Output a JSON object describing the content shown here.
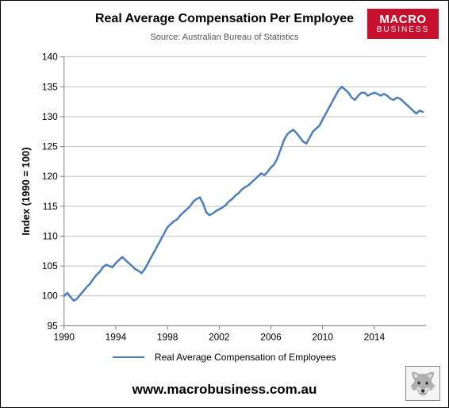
{
  "title": {
    "text": "Real Average Compensation Per Employee",
    "fontsize": 16,
    "weight": "bold",
    "color": "#000000"
  },
  "source": {
    "text": "Source: Australian Bureau of Statistics",
    "fontsize": 11,
    "color": "#555555"
  },
  "brand": {
    "line1": "MACRO",
    "line2": "BUSINESS",
    "bg": "#c8102e",
    "fg": "#ffffff",
    "fontsize1": 15
  },
  "legend": {
    "label": "Real Average Compensation of Employees",
    "color": "#4a7ebb",
    "fontsize": 12
  },
  "url": {
    "text": "www.macrobusiness.com.au",
    "fontsize": 17,
    "color": "#000000"
  },
  "wolf": {
    "glyph": "🐺"
  },
  "chart": {
    "type": "line",
    "ylabel": "Index (1990 = 100)",
    "ylabel_fontsize": 13,
    "ylim": [
      95,
      140
    ],
    "ytick_step": 5,
    "xlim": [
      1990,
      2018
    ],
    "xticks": [
      1990,
      1994,
      1998,
      2002,
      2006,
      2010,
      2014
    ],
    "tick_fontsize": 12,
    "background": "#ffffff",
    "grid_color": "#c0c0c0",
    "axis_color": "#808080",
    "line_color": "#4a7ebb",
    "line_width": 2.5,
    "series": {
      "x": [
        1990.0,
        1990.25,
        1990.5,
        1990.75,
        1991.0,
        1991.25,
        1991.5,
        1991.75,
        1992.0,
        1992.25,
        1992.5,
        1992.75,
        1993.0,
        1993.25,
        1993.5,
        1993.75,
        1994.0,
        1994.25,
        1994.5,
        1994.75,
        1995.0,
        1995.25,
        1995.5,
        1995.75,
        1996.0,
        1996.25,
        1996.5,
        1996.75,
        1997.0,
        1997.25,
        1997.5,
        1997.75,
        1998.0,
        1998.25,
        1998.5,
        1998.75,
        1999.0,
        1999.25,
        1999.5,
        1999.75,
        2000.0,
        2000.25,
        2000.5,
        2000.75,
        2001.0,
        2001.25,
        2001.5,
        2001.75,
        2002.0,
        2002.25,
        2002.5,
        2002.75,
        2003.0,
        2003.25,
        2003.5,
        2003.75,
        2004.0,
        2004.25,
        2004.5,
        2004.75,
        2005.0,
        2005.25,
        2005.5,
        2005.75,
        2006.0,
        2006.25,
        2006.5,
        2006.75,
        2007.0,
        2007.25,
        2007.5,
        2007.75,
        2008.0,
        2008.25,
        2008.5,
        2008.75,
        2009.0,
        2009.25,
        2009.5,
        2009.75,
        2010.0,
        2010.25,
        2010.5,
        2010.75,
        2011.0,
        2011.25,
        2011.5,
        2011.75,
        2012.0,
        2012.25,
        2012.5,
        2012.75,
        2013.0,
        2013.25,
        2013.5,
        2013.75,
        2014.0,
        2014.25,
        2014.5,
        2014.75,
        2015.0,
        2015.25,
        2015.5,
        2015.75,
        2016.0,
        2016.25,
        2016.5,
        2016.75,
        2017.0,
        2017.25,
        2017.5,
        2017.75
      ],
      "y": [
        100.0,
        100.5,
        99.8,
        99.2,
        99.5,
        100.2,
        100.8,
        101.5,
        102.0,
        102.8,
        103.5,
        104.0,
        104.8,
        105.2,
        105.0,
        104.8,
        105.5,
        106.0,
        106.5,
        106.0,
        105.5,
        105.0,
        104.5,
        104.2,
        103.8,
        104.5,
        105.5,
        106.5,
        107.5,
        108.5,
        109.5,
        110.5,
        111.5,
        112.0,
        112.5,
        112.8,
        113.5,
        114.0,
        114.5,
        115.0,
        115.8,
        116.2,
        116.5,
        115.5,
        114.0,
        113.5,
        113.8,
        114.2,
        114.5,
        114.8,
        115.2,
        115.8,
        116.2,
        116.8,
        117.2,
        117.8,
        118.2,
        118.5,
        119.0,
        119.5,
        120.0,
        120.5,
        120.2,
        120.8,
        121.5,
        122.0,
        123.0,
        124.5,
        126.0,
        127.0,
        127.5,
        127.8,
        127.2,
        126.5,
        125.8,
        125.5,
        126.5,
        127.5,
        128.0,
        128.5,
        129.5,
        130.5,
        131.5,
        132.5,
        133.5,
        134.5,
        135.0,
        134.5,
        134.0,
        133.2,
        132.8,
        133.5,
        134.0,
        134.0,
        133.5,
        133.8,
        134.0,
        133.8,
        133.5,
        133.8,
        133.5,
        133.0,
        132.8,
        133.2,
        133.0,
        132.5,
        132.0,
        131.5,
        131.0,
        130.5,
        131.0,
        130.8
      ]
    }
  }
}
